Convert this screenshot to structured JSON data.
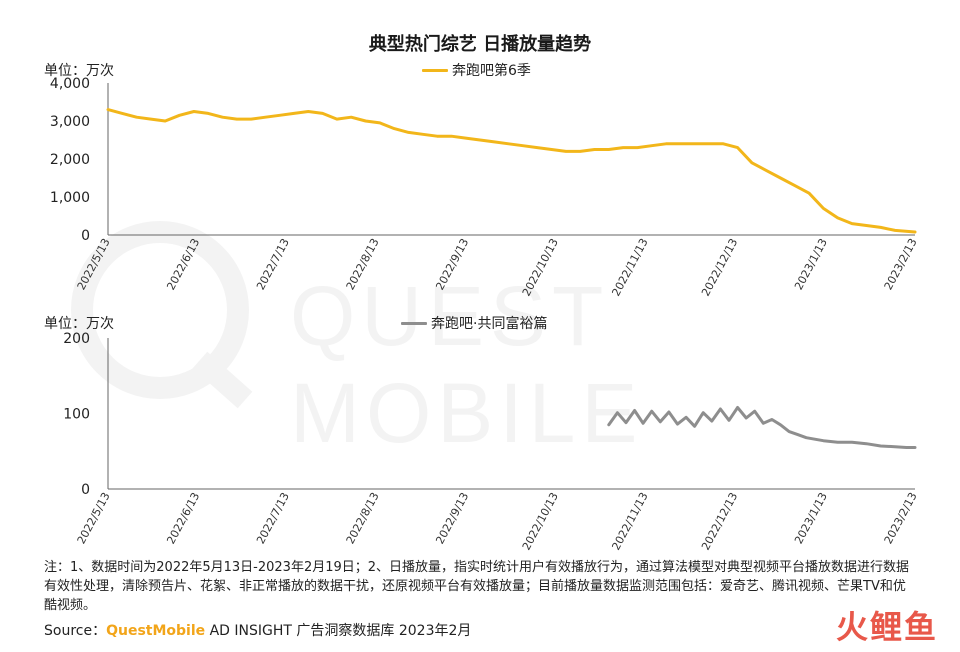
{
  "title": "典型热门综艺 日播放量趋势",
  "chart_data": [
    {
      "type": "line",
      "unit_label": "单位：万次",
      "series": [
        {
          "name": "奔跑吧第6季",
          "color": "#f2b61a"
        }
      ],
      "ylim": [
        0,
        4000
      ],
      "y_ticks": [
        "4,000",
        "3,000",
        "2,000",
        "1,000",
        "0"
      ],
      "y_tick_values": [
        4000,
        3000,
        2000,
        1000,
        0
      ],
      "x_ticks": [
        "2022/5/13",
        "2022/6/13",
        "2022/7/13",
        "2022/8/13",
        "2022/9/13",
        "2022/10/13",
        "2022/11/13",
        "2022/12/13",
        "2023/1/13",
        "2023/2/13"
      ],
      "x_day_span": [
        0,
        282
      ],
      "x": [
        0,
        5,
        10,
        15,
        20,
        25,
        30,
        35,
        40,
        45,
        50,
        55,
        60,
        65,
        70,
        75,
        80,
        85,
        90,
        95,
        100,
        105,
        110,
        115,
        120,
        125,
        130,
        135,
        140,
        145,
        150,
        155,
        160,
        165,
        170,
        175,
        180,
        185,
        190,
        195,
        200,
        205,
        210,
        215,
        220,
        225,
        230,
        235,
        240,
        245,
        250,
        255,
        260,
        265,
        270,
        275,
        282
      ],
      "y": [
        3300,
        3200,
        3100,
        3050,
        3000,
        3150,
        3250,
        3200,
        3100,
        3050,
        3050,
        3100,
        3150,
        3200,
        3250,
        3200,
        3050,
        3100,
        3000,
        2950,
        2800,
        2700,
        2650,
        2600,
        2600,
        2550,
        2500,
        2450,
        2400,
        2350,
        2300,
        2250,
        2200,
        2200,
        2250,
        2250,
        2300,
        2300,
        2350,
        2400,
        2400,
        2400,
        2400,
        2400,
        2300,
        1900,
        1700,
        1500,
        1300,
        1100,
        700,
        450,
        300,
        250,
        200,
        120,
        80
      ]
    },
    {
      "type": "line",
      "unit_label": "单位：万次",
      "series": [
        {
          "name": "奔跑吧·共同富裕篇",
          "color": "#8e8e8e"
        }
      ],
      "ylim": [
        0,
        200
      ],
      "y_ticks": [
        "200",
        "100",
        "0"
      ],
      "y_tick_values": [
        200,
        100,
        0
      ],
      "x_ticks": [
        "2022/5/13",
        "2022/6/13",
        "2022/7/13",
        "2022/8/13",
        "2022/9/13",
        "2022/10/13",
        "2022/11/13",
        "2022/12/13",
        "2023/1/13",
        "2023/2/13"
      ],
      "x_day_span": [
        0,
        282
      ],
      "x": [
        175,
        178,
        181,
        184,
        187,
        190,
        193,
        196,
        199,
        202,
        205,
        208,
        211,
        214,
        217,
        220,
        223,
        226,
        229,
        232,
        235,
        238,
        241,
        244,
        247,
        250,
        255,
        260,
        265,
        270,
        275,
        279,
        282
      ],
      "y": [
        85,
        101,
        88,
        104,
        87,
        103,
        89,
        102,
        86,
        95,
        83,
        101,
        90,
        106,
        91,
        108,
        94,
        103,
        87,
        92,
        85,
        76,
        72,
        68,
        66,
        64,
        62,
        62,
        60,
        57,
        56,
        55,
        55
      ]
    }
  ],
  "notes": "注：1、数据时间为2022年5月13日-2023年2月19日；2、日播放量，指实时统计用户有效播放行为，通过算法模型对典型视频平台播放数据进行数据有效性处理，清除预告片、花絮、非正常播放的数据干扰，还原视频平台有效播放量；目前播放量数据监测范围包括：爱奇艺、腾讯视频、芒果TV和优酷视频。",
  "source_prefix": "Source：",
  "source_brand": "QuestMobile",
  "source_suffix": " AD INSIGHT 广告洞察数据库 2023年2月",
  "watermark_text": "QUEST MOBILE",
  "logo_text": "火鲤鱼"
}
